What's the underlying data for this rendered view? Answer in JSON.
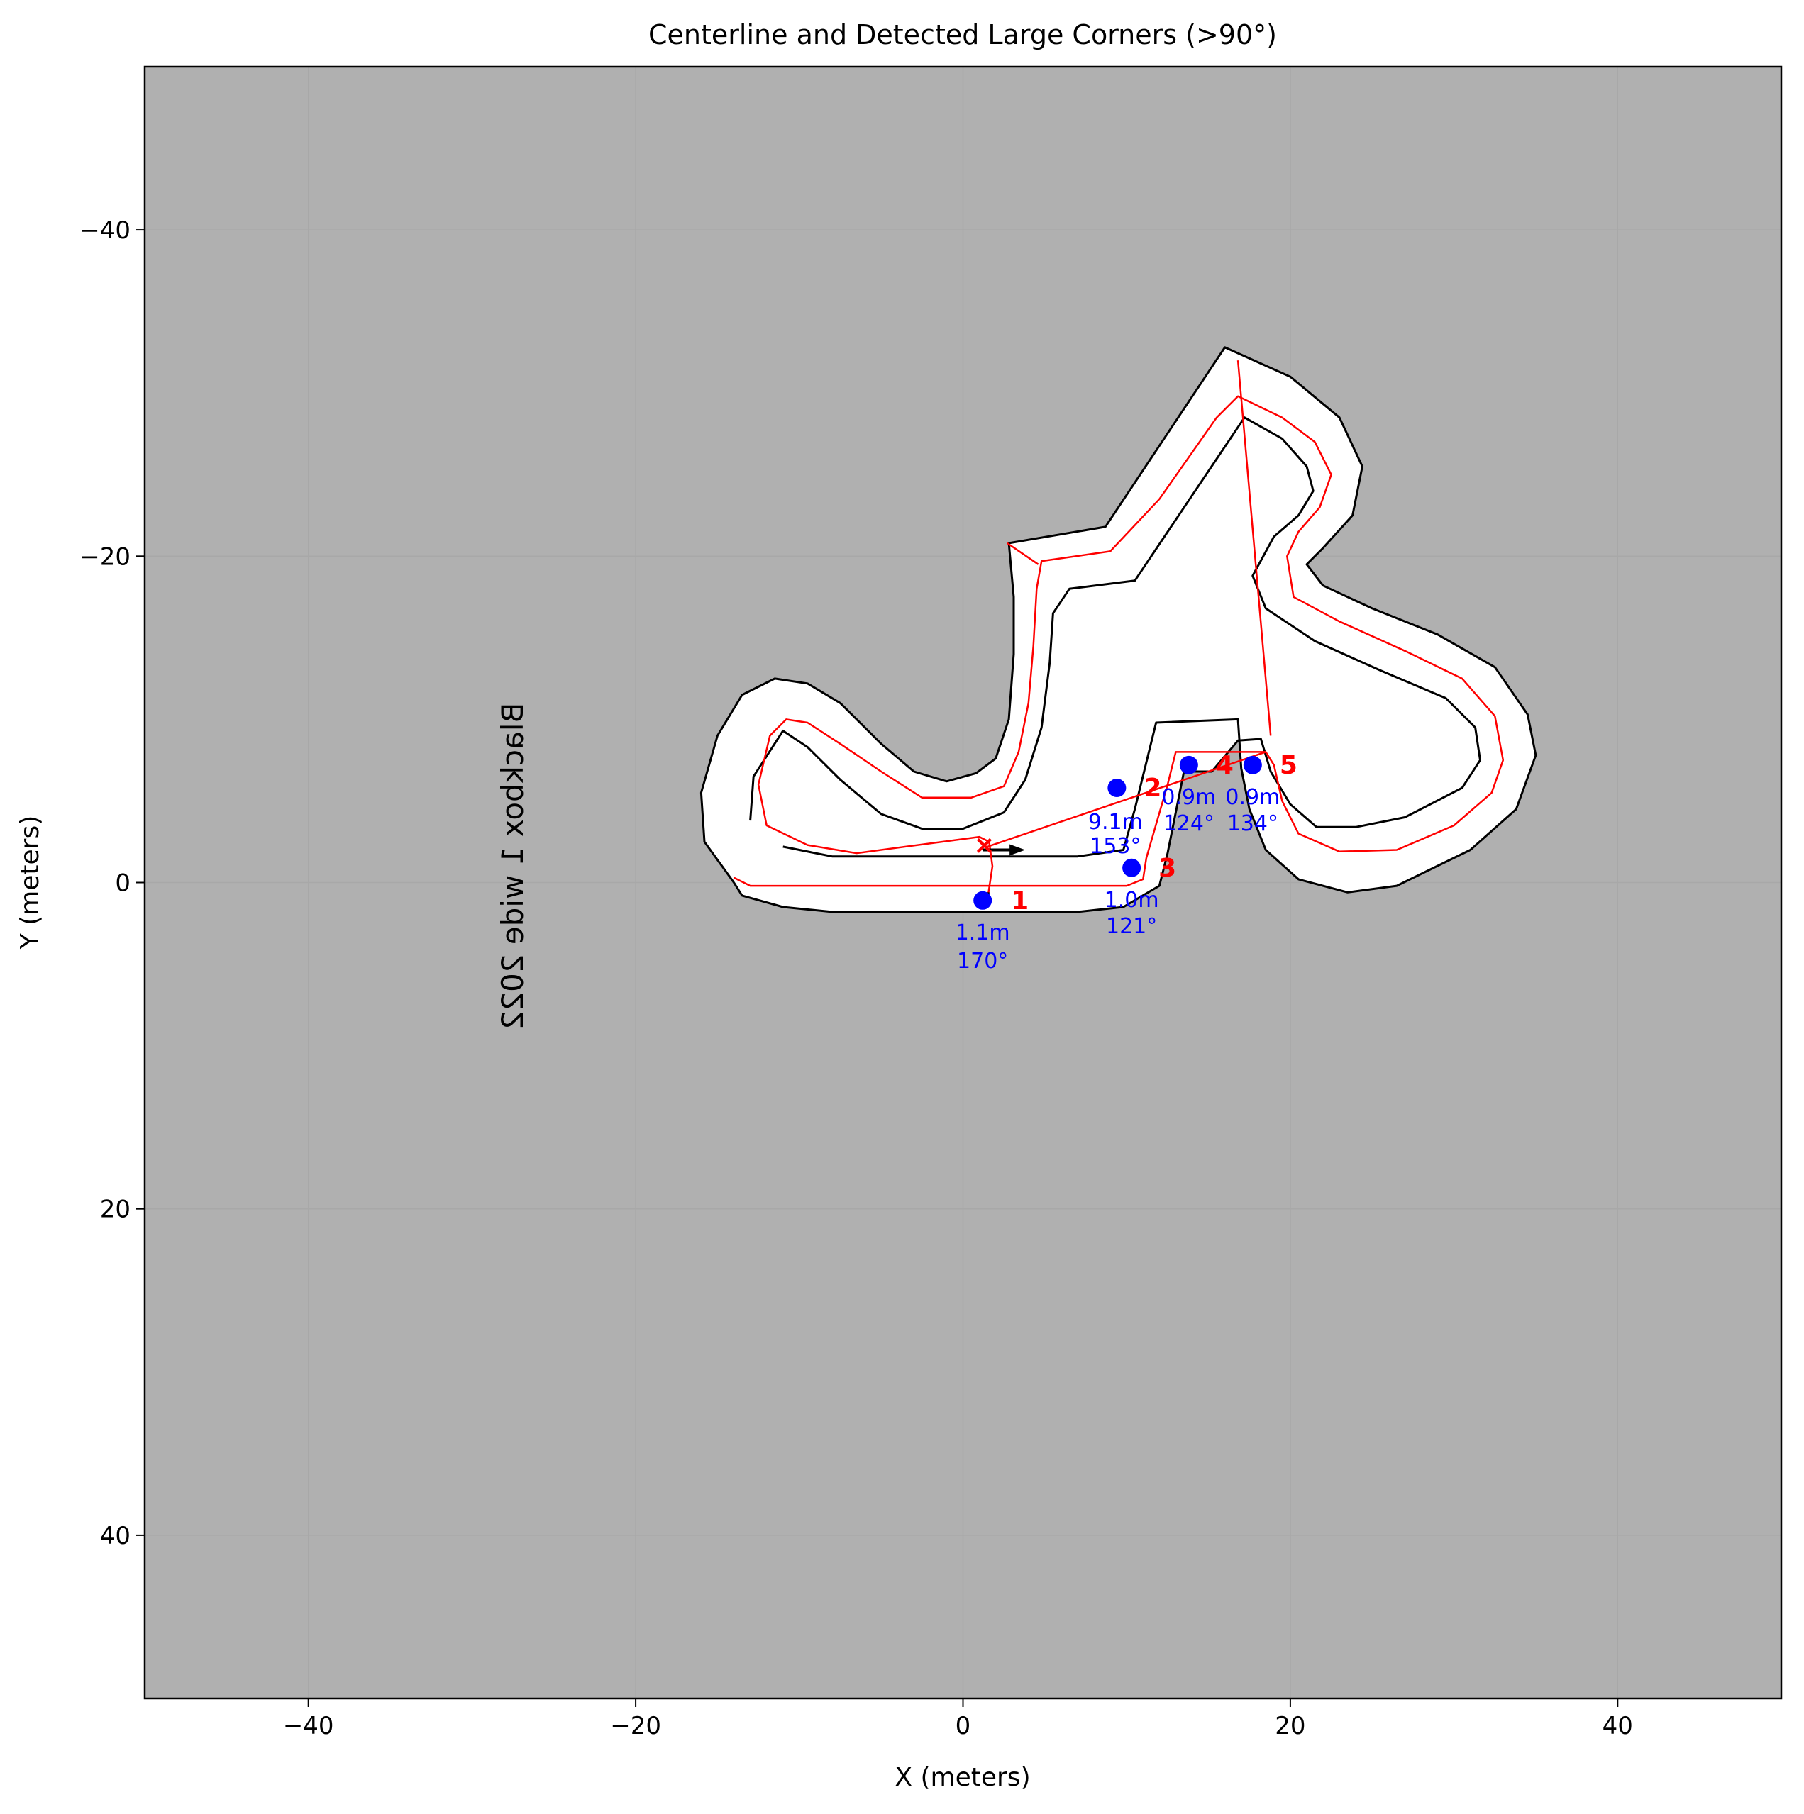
{
  "chart_data": {
    "type": "line",
    "title": "Centerline and Detected Large Corners (>90°)",
    "xlabel": "X (meters)",
    "ylabel": "Y (meters)",
    "xlim": [
      -50,
      50
    ],
    "ylim": [
      50,
      -50
    ],
    "y_inverted": true,
    "xticks": [
      -40,
      -20,
      0,
      20,
      40
    ],
    "yticks": [
      -40,
      -20,
      0,
      20,
      40
    ],
    "xtick_labels": [
      "−40",
      "−20",
      "0",
      "20",
      "40"
    ],
    "ytick_labels": [
      "−40",
      "−20",
      "0",
      "20",
      "40"
    ],
    "grid": "on, light gray",
    "background_color": "#b0b0b0",
    "watermark": "Blackbox 1 wide 2022",
    "colors": {
      "boundary": "#000000",
      "track": "#ffffff",
      "centerline": "#ff0000",
      "corner_marker": "#0000ff",
      "corner_label": "#ff0000",
      "annotation": "#0000ff"
    },
    "outer_boundary": [
      [
        -14,
        0
      ],
      [
        -15.8,
        -2.5
      ],
      [
        -16,
        -5.5
      ],
      [
        -15,
        -9
      ],
      [
        -13.5,
        -11.5
      ],
      [
        -11.5,
        -12.5
      ],
      [
        -9.5,
        -12.2
      ],
      [
        -7.5,
        -11
      ],
      [
        -5,
        -8.5
      ],
      [
        -3,
        -6.8
      ],
      [
        -1,
        -6.2
      ],
      [
        0.8,
        -6.7
      ],
      [
        2,
        -7.6
      ],
      [
        2.8,
        -10
      ],
      [
        3.1,
        -14
      ],
      [
        3.1,
        -17.5
      ],
      [
        2.8,
        -20.8
      ],
      [
        8.7,
        -21.8
      ],
      [
        16,
        -32.8
      ],
      [
        20,
        -31
      ],
      [
        23,
        -28.5
      ],
      [
        24.4,
        -25.5
      ],
      [
        23.8,
        -22.5
      ],
      [
        22,
        -20.5
      ],
      [
        21,
        -19.5
      ],
      [
        22,
        -18.2
      ],
      [
        25,
        -16.8
      ],
      [
        29,
        -15.2
      ],
      [
        32.5,
        -13.2
      ],
      [
        34.5,
        -10.3
      ],
      [
        35,
        -7.8
      ],
      [
        33.8,
        -4.5
      ],
      [
        31,
        -2
      ],
      [
        26.5,
        0.2
      ],
      [
        23.5,
        0.6
      ],
      [
        20.5,
        -0.2
      ],
      [
        18.5,
        -2
      ],
      [
        17.5,
        -4.5
      ],
      [
        17,
        -7
      ],
      [
        16.8,
        -10
      ],
      [
        11.8,
        -9.8
      ],
      [
        10.5,
        -4.5
      ],
      [
        9.8,
        -2
      ],
      [
        7,
        -1.6
      ],
      [
        -8,
        -1.6
      ],
      [
        -11,
        -2.2
      ],
      [
        -13,
        -3.8
      ],
      [
        -12.8,
        -6.5
      ],
      [
        -11,
        -9.3
      ],
      [
        -9.5,
        -8.3
      ],
      [
        -7.5,
        -6.3
      ],
      [
        -5,
        -4.2
      ],
      [
        -2.5,
        -3.3
      ],
      [
        0,
        -3.3
      ],
      [
        2.5,
        -4.3
      ],
      [
        3.8,
        -6.3
      ],
      [
        4.8,
        -9.5
      ],
      [
        5.3,
        -13.5
      ],
      [
        5.5,
        -16.5
      ],
      [
        6.5,
        -18
      ],
      [
        10.5,
        -18.5
      ],
      [
        17.2,
        -28.5
      ],
      [
        19.5,
        -27.2
      ],
      [
        21,
        -25.5
      ],
      [
        21.4,
        -24
      ],
      [
        20.5,
        -22.5
      ],
      [
        19,
        -21.2
      ],
      [
        17.7,
        -18.8
      ],
      [
        18.5,
        -16.8
      ],
      [
        21.5,
        -14.8
      ],
      [
        25.5,
        -13
      ],
      [
        29.5,
        -11.3
      ],
      [
        31.3,
        -9.5
      ],
      [
        31.6,
        -7.5
      ],
      [
        30.5,
        -5.8
      ],
      [
        27,
        -4
      ],
      [
        24,
        -3.4
      ],
      [
        21.6,
        -3.4
      ],
      [
        20,
        -4.8
      ],
      [
        18.8,
        -6.8
      ],
      [
        18.2,
        -8.8
      ],
      [
        16.8,
        -8.7
      ],
      [
        15.2,
        -6.8
      ],
      [
        13.5,
        -6.8
      ],
      [
        12.5,
        -1.8
      ],
      [
        12,
        0.2
      ],
      [
        9.8,
        1.5
      ],
      [
        7,
        1.8
      ],
      [
        -8,
        1.8
      ],
      [
        -11,
        1.5
      ],
      [
        -13.5,
        0.8
      ],
      [
        -14,
        0
      ]
    ],
    "outer_boundary_split": 45,
    "centerline": [
      [
        1.5,
        1
      ],
      [
        1.8,
        -1
      ],
      [
        1.6,
        -2.5
      ],
      [
        1,
        -2.8
      ],
      [
        -6.5,
        -1.8
      ],
      [
        -9.5,
        -2.3
      ],
      [
        -12,
        -3.5
      ],
      [
        -12.5,
        -6
      ],
      [
        -11.8,
        -9
      ],
      [
        -10.8,
        -10
      ],
      [
        -9.5,
        -9.8
      ],
      [
        -7.5,
        -8.5
      ],
      [
        -5,
        -6.8
      ],
      [
        -2.5,
        -5.2
      ],
      [
        0.5,
        -5.2
      ],
      [
        2.5,
        -5.9
      ],
      [
        3.4,
        -8
      ],
      [
        4,
        -11
      ],
      [
        4.3,
        -14.5
      ],
      [
        4.5,
        -18
      ],
      [
        4.8,
        -19.7
      ],
      [
        9,
        -20.3
      ],
      [
        12,
        -23.5
      ],
      [
        15.5,
        -28.5
      ],
      [
        16.8,
        -29.8
      ],
      [
        19.5,
        -28.5
      ],
      [
        21.5,
        -27
      ],
      [
        22.5,
        -25
      ],
      [
        21.8,
        -23
      ],
      [
        20.5,
        -21.5
      ],
      [
        19.8,
        -20
      ],
      [
        20.2,
        -17.5
      ],
      [
        23,
        -16
      ],
      [
        27,
        -14.2
      ],
      [
        30.5,
        -12.5
      ],
      [
        32.5,
        -10.2
      ],
      [
        33,
        -7.5
      ],
      [
        32.3,
        -5.5
      ],
      [
        30,
        -3.5
      ],
      [
        26.5,
        -2
      ],
      [
        23,
        -1.9
      ],
      [
        20.5,
        -3
      ],
      [
        19.5,
        -5
      ],
      [
        19,
        -7.2
      ],
      [
        18.5,
        -8
      ],
      [
        13,
        -8
      ],
      [
        12.5,
        -6
      ],
      [
        11.2,
        -1.5
      ],
      [
        11,
        -0.2
      ],
      [
        10,
        0.2
      ],
      [
        -13,
        0.2
      ],
      [
        -14,
        -0.3
      ]
    ],
    "connector_lines": [
      {
        "from": [
          1.5,
          -2.2
        ],
        "to": [
          18.5,
          -8
        ]
      },
      {
        "from": [
          18.8,
          -9
        ],
        "to": [
          16.8,
          -32
        ]
      },
      {
        "from": [
          2.7,
          -20.8
        ],
        "to": [
          4.6,
          -19.5
        ]
      }
    ],
    "start_marker": {
      "label": "×",
      "x": 1.3,
      "y": -2.3
    },
    "start_arrow": {
      "from": [
        1.2,
        -2
      ],
      "to": [
        3.8,
        -2
      ]
    },
    "series": [
      {
        "name": "Detected large corners",
        "points": [
          {
            "id": "1",
            "x": 1.2,
            "y": 1.1,
            "label": "1",
            "dist": "1.1m",
            "angle": "170°"
          },
          {
            "id": "2",
            "x": 9.4,
            "y": -5.8,
            "label": "2",
            "dist": "9.1m",
            "angle": "153°"
          },
          {
            "id": "3",
            "x": 10.3,
            "y": -0.9,
            "label": "3",
            "dist": "1.0m",
            "angle": "121°"
          },
          {
            "id": "4",
            "x": 13.8,
            "y": -7.2,
            "label": "4",
            "dist": "0.9m",
            "angle": "124°"
          },
          {
            "id": "5",
            "x": 17.7,
            "y": -7.2,
            "label": "5",
            "dist": "0.9m",
            "angle": "134°"
          }
        ]
      }
    ]
  }
}
